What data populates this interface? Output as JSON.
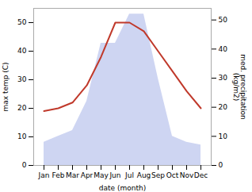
{
  "chart_data": {
    "type": "line",
    "categories": [
      "Jan",
      "Feb",
      "Mar",
      "Apr",
      "May",
      "Jun",
      "Jul",
      "Aug",
      "Sep",
      "Oct",
      "Nov",
      "Dec"
    ],
    "xlabel": "date (month)",
    "ylabel": "max temp (C)",
    "y2label": "med. precipitation\n(kg/m2)",
    "ylim": [
      0,
      55
    ],
    "yticks": [
      0,
      10,
      20,
      30,
      40,
      50
    ],
    "y2lim": [
      0,
      54
    ],
    "y2ticks": [
      0,
      10,
      20,
      30,
      40,
      50
    ],
    "series": [
      {
        "name": "max temp (C)",
        "type": "line",
        "color": "#c0392b",
        "values": [
          19,
          20,
          22,
          28,
          38,
          50,
          50,
          47,
          40,
          33,
          26,
          20
        ]
      },
      {
        "name": "med. precipitation\n(kg/m2)",
        "type": "area",
        "color": "#c5cef0",
        "axis": "y2",
        "values": [
          8,
          10,
          12,
          22,
          42,
          42,
          52,
          52,
          30,
          10,
          8,
          7
        ]
      }
    ]
  }
}
